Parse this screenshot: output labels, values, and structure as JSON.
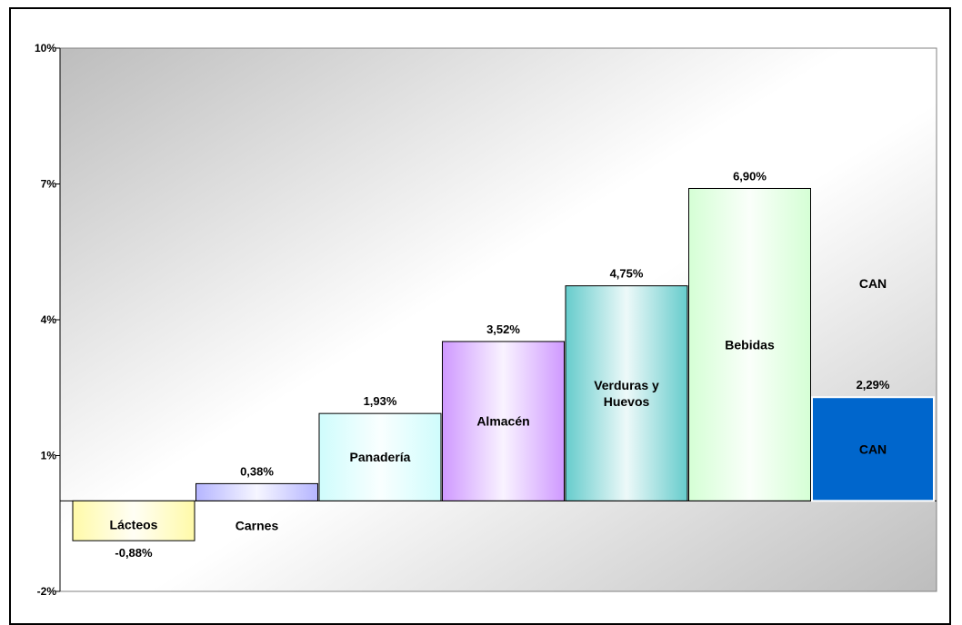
{
  "chart_data": {
    "type": "bar",
    "categories": [
      "Lácteos",
      "Carnes",
      "Panadería",
      "Almacén",
      "Verduras y Huevos",
      "Bebidas",
      "CAN"
    ],
    "category_lines": [
      [
        "Lácteos"
      ],
      [
        "Carnes"
      ],
      [
        "Panadería"
      ],
      [
        "Almacén"
      ],
      [
        "Verduras y",
        "Huevos"
      ],
      [
        "Bebidas"
      ],
      [
        "CAN"
      ]
    ],
    "values": [
      -0.88,
      0.38,
      1.93,
      3.52,
      4.75,
      6.9,
      2.29
    ],
    "value_labels": [
      "-0,88%",
      "0,38%",
      "1,93%",
      "3,52%",
      "4,75%",
      "6,90%",
      "2,29%"
    ],
    "yticks": [
      "10%",
      "7%",
      "4%",
      "1%",
      "-2%"
    ],
    "ytick_values": [
      10,
      7,
      4,
      1,
      -2
    ],
    "ylim": [
      -2,
      10
    ],
    "extra_label": "CAN",
    "colors": [
      "#fffaa8",
      "#b5b5ff",
      "#cffcfc",
      "#cf99ff",
      "#66cccc",
      "#d5ffd5",
      "#0066cc"
    ],
    "grid": false
  }
}
